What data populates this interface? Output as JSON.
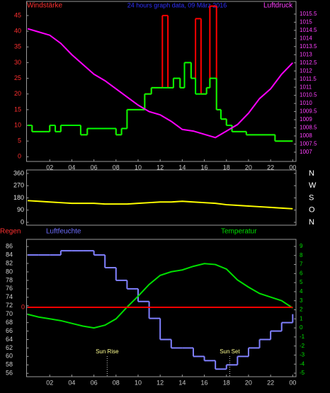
{
  "chart_data": [
    {
      "type": "line",
      "title": "24 hours graph data, 09 März 2016",
      "x": [
        0,
        1,
        2,
        3,
        4,
        5,
        6,
        7,
        8,
        9,
        10,
        11,
        12,
        13,
        14,
        15,
        16,
        17,
        18,
        19,
        20,
        21,
        22,
        23,
        24
      ],
      "xlim": [
        -0.1,
        24.3
      ],
      "xticks": [
        {
          "value": 2,
          "label": "02"
        },
        {
          "value": 4,
          "label": "04"
        },
        {
          "value": 6,
          "label": "06"
        },
        {
          "value": 8,
          "label": "08"
        },
        10,
        12,
        14,
        16,
        18,
        20,
        22,
        {
          "value": 24,
          "label": "00"
        }
      ],
      "ylim": [
        -1.5,
        49.5
      ],
      "yticks": [
        0,
        5,
        10,
        15,
        20,
        25,
        30,
        35,
        40,
        45
      ],
      "y2lim": [
        1006.43,
        1016.28
      ],
      "y2ticks": [
        1007,
        1007.5,
        1008,
        1008.5,
        1009,
        1009.5,
        1010,
        1010.5,
        1011,
        1011.5,
        1012,
        1012.5,
        1013,
        1013.5,
        1014,
        1014.5,
        1015,
        1015.5
      ],
      "series": [
        {
          "color": "#ff0000",
          "step": true,
          "x": [
            0,
            0.4,
            2,
            2.5,
            3,
            4.8,
            5.4,
            8,
            8.5,
            9,
            10.6,
            11.2,
            12.2,
            12.7,
            13.2,
            13.8,
            14.2,
            14.8,
            15.2,
            15.7,
            16.2,
            16.5,
            17.1,
            17.5,
            18,
            18.5,
            19.8,
            22.4,
            24
          ],
          "values": [
            10,
            8,
            10,
            8,
            10,
            7,
            9,
            7,
            9,
            15,
            20,
            22,
            45,
            22,
            25,
            22,
            30,
            25,
            44,
            20,
            22,
            48,
            15,
            12,
            10,
            8,
            7,
            5,
            5
          ]
        },
        {
          "name": "Windstärke",
          "color": "#00ff00",
          "step": true,
          "x": [
            0,
            0.4,
            2,
            2.5,
            3,
            4.8,
            5.4,
            8,
            8.5,
            9,
            10.6,
            11.2,
            12.2,
            12.7,
            13.2,
            13.8,
            14.2,
            14.8,
            15.2,
            15.7,
            16.2,
            16.5,
            17.1,
            17.5,
            18,
            18.5,
            19.8,
            22.4,
            24
          ],
          "values": [
            10,
            8,
            10,
            8,
            10,
            7,
            9,
            7,
            9,
            15,
            20,
            22,
            22,
            22,
            25,
            22,
            30,
            25,
            20,
            20,
            22,
            25,
            15,
            12,
            10,
            8,
            7,
            5,
            5
          ]
        },
        {
          "name": "Luftdruck",
          "color": "#ff00ff",
          "axis": "y2",
          "values": [
            1014.6,
            1014.4,
            1014.2,
            1013.7,
            1013,
            1012.4,
            1011.8,
            1011.4,
            1010.9,
            1010.4,
            1009.9,
            1009.5,
            1009.3,
            1008.9,
            1008.4,
            1008.3,
            1008.1,
            1007.9,
            1008.3,
            1008.7,
            1009.4,
            1010.3,
            1010.9,
            1011.8,
            1012.5
          ]
        }
      ]
    },
    {
      "type": "line",
      "x": [
        0,
        1,
        2,
        3,
        4,
        5,
        6,
        7,
        8,
        9,
        10,
        11,
        12,
        13,
        14,
        15,
        16,
        17,
        18,
        19,
        20,
        21,
        22,
        23,
        24
      ],
      "xlim": [
        -0.1,
        24.3
      ],
      "ylim": [
        -21,
        386
      ],
      "yticks": [
        0,
        90,
        180,
        270,
        360
      ],
      "y2lim": [
        -21,
        386
      ],
      "y2ticks": [
        {
          "value": 360,
          "label": "N"
        },
        {
          "value": 270,
          "label": "W"
        },
        {
          "value": 180,
          "label": "S"
        },
        {
          "value": 90,
          "label": "O"
        },
        {
          "value": 0,
          "label": "N"
        }
      ],
      "series": [
        {
          "color": "#ffff00",
          "values": [
            160,
            155,
            150,
            145,
            140,
            140,
            140,
            135,
            135,
            135,
            140,
            145,
            150,
            150,
            155,
            150,
            145,
            140,
            130,
            125,
            120,
            115,
            110,
            105,
            100
          ]
        }
      ]
    },
    {
      "type": "line",
      "x": [
        0,
        1,
        2,
        3,
        4,
        5,
        6,
        7,
        8,
        9,
        10,
        11,
        12,
        13,
        14,
        15,
        16,
        17,
        18,
        19,
        20,
        21,
        22,
        23,
        24
      ],
      "xlim": [
        -0.1,
        24.3
      ],
      "xticks": [
        {
          "value": 2,
          "label": "02"
        },
        {
          "value": 4,
          "label": "04"
        },
        {
          "value": 6,
          "label": "06"
        },
        {
          "value": 8,
          "label": "08"
        },
        10,
        12,
        14,
        16,
        18,
        20,
        22,
        {
          "value": 24,
          "label": "00"
        }
      ],
      "ylim": [
        55.2,
        87.7
      ],
      "yticks": [
        56,
        58,
        60,
        62,
        64,
        66,
        68,
        70,
        72,
        74,
        76,
        78,
        80,
        82,
        84,
        86
      ],
      "y2lim": [
        -5.39,
        9.78
      ],
      "y2ticks": [
        -5,
        -4,
        -3,
        -2,
        -1,
        0,
        1,
        2,
        3,
        4,
        5,
        6,
        7,
        8,
        9
      ],
      "y3lim": [
        -7.66,
        7.5
      ],
      "y3ticks": [
        0
      ],
      "series": [
        {
          "name": "Luftfeuchte",
          "color": "#8080ff",
          "step": true,
          "values": [
            84,
            84,
            84,
            85,
            85,
            85,
            84,
            81,
            78,
            76,
            73,
            69,
            64,
            62,
            62,
            60,
            59,
            57,
            58,
            60,
            62,
            64,
            66,
            68,
            70
          ]
        },
        {
          "name": "Temperatur",
          "color": "#00e000",
          "axis": "y2",
          "values": [
            1.5,
            1.2,
            1,
            0.8,
            0.5,
            0.2,
            0,
            0.3,
            1,
            2.3,
            3.5,
            4.8,
            5.8,
            6.2,
            6.4,
            6.8,
            7.1,
            7,
            6.5,
            5.3,
            4.5,
            3.8,
            3.4,
            3,
            2.2
          ]
        },
        {
          "name": "Regen",
          "color": "#ff0000",
          "axis": "y3",
          "x": [
            0,
            24
          ],
          "values": [
            0,
            0
          ]
        }
      ],
      "annotations": [
        {
          "x": 7.2,
          "text": "Sun Rise"
        },
        {
          "x": 18.3,
          "text": "Sun Set"
        }
      ]
    }
  ]
}
